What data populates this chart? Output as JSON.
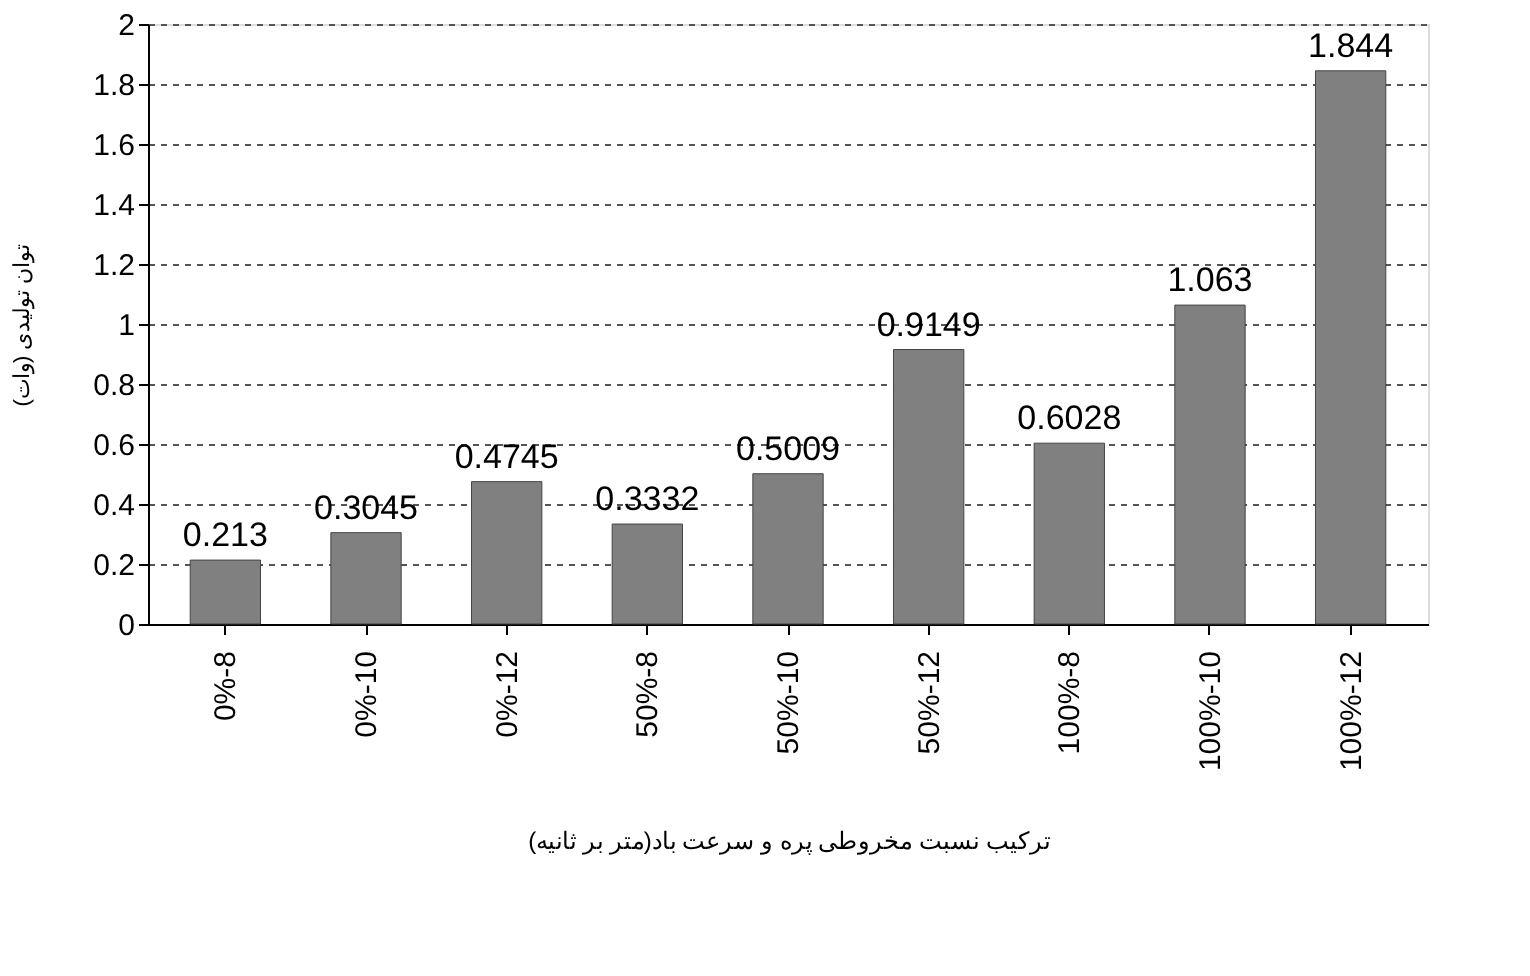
{
  "chart_data": {
    "type": "bar",
    "xlabel": "ترکیب نسبت مخروطی پره و سرعت باد(متر بر ثانیه)",
    "ylabel": "توان تولیدی (وات)",
    "categories": [
      "0%-8",
      "0%-10",
      "0%-12",
      "50%-8",
      "50%-10",
      "50%-12",
      "100%-8",
      "100%-10",
      "100%-12"
    ],
    "values": [
      0.213,
      0.3045,
      0.4745,
      0.3332,
      0.5009,
      0.9149,
      0.6028,
      1.063,
      1.844
    ],
    "color": "#808080",
    "ylim": [
      0,
      2
    ],
    "yticks": [
      0,
      0.2,
      0.4,
      0.6,
      0.8,
      1,
      1.2,
      1.4,
      1.6,
      1.8,
      2
    ],
    "grid": "y",
    "data_labels": true
  }
}
